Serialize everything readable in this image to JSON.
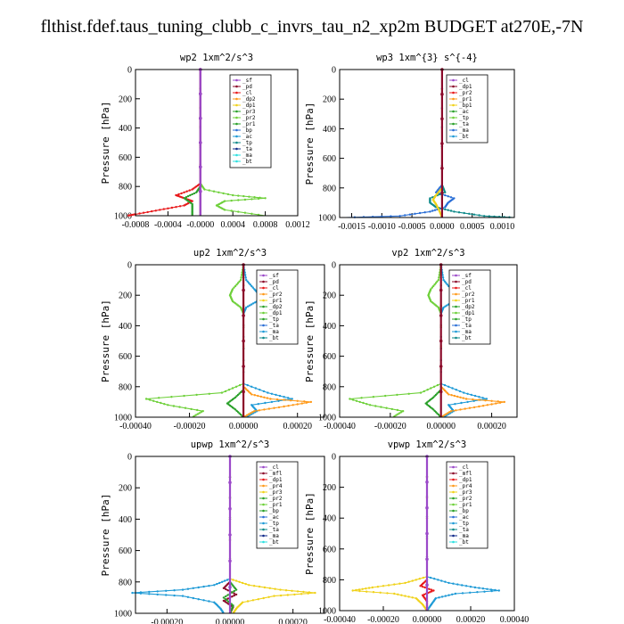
{
  "page_title": "flthist.fdef.taus_tuning_clubb_c_invrs_tau_n2_xp2m  BUDGET at270E,-7N",
  "colors": {
    "purple": "#9b49c9",
    "darkred": "#8b0a2a",
    "red": "#e8191b",
    "orange": "#ff9a1a",
    "yellow": "#f0d21a",
    "green": "#2aa02a",
    "lightgreen": "#6ed03a",
    "blue": "#2b6fd6",
    "skyblue": "#1e9ad6",
    "teal": "#0f8a8a",
    "navy": "#102a8a",
    "cyan": "#2ee0e0"
  },
  "chart_data": [
    {
      "type": "line",
      "title": "wp2   1xm^2/s^3",
      "ylabel": "Pressure  [hPa]",
      "ylim": [
        1000,
        0
      ],
      "yticks": [
        "0",
        "200",
        "400",
        "600",
        "800",
        "1000"
      ],
      "xlim": [
        -0.0008,
        0.0012
      ],
      "xticks": [
        "-0.0008",
        "-0.0004",
        "-0.0000",
        "0.0004",
        "0.0008",
        "0.0012"
      ],
      "xtick_values": [
        -0.0008,
        -0.0006,
        -0.0004,
        -0.0002,
        0.0,
        0.0004,
        0.0008,
        0.0012
      ],
      "legend": [
        "_sf",
        "_pd",
        "_cl",
        "_dp2",
        "_dp1",
        "_pr3",
        "_pr2",
        "_pr1",
        "_bp",
        "_ac",
        "_tp",
        "_ta",
        "_ma",
        "_bt"
      ],
      "series": [
        {
          "name": "_pr1",
          "color": "lightgreen",
          "y": [
            0,
            780,
            820,
            860,
            880,
            900,
            930,
            960,
            1000
          ],
          "x": [
            0,
            0,
            5e-05,
            0.0004,
            0.0008,
            0.0003,
            0.0002,
            0.0003,
            0.0008
          ]
        },
        {
          "name": "_dp1",
          "color": "red",
          "y": [
            0,
            780,
            820,
            860,
            880,
            900,
            930,
            960,
            990,
            1000
          ],
          "x": [
            0,
            0,
            -0.0001,
            -0.0003,
            -0.0002,
            -0.0001,
            -0.0002,
            -0.0005,
            -0.0008,
            -0.0009
          ]
        },
        {
          "name": "_bp",
          "color": "green",
          "y": [
            0,
            800,
            840,
            880,
            920,
            960,
            1000
          ],
          "x": [
            0,
            0,
            -5e-05,
            -0.0002,
            -0.0001,
            -0.0001,
            -0.0001
          ]
        },
        {
          "name": "_cl",
          "color": "darkred",
          "y": [
            0,
            1000
          ],
          "x": [
            0,
            0
          ]
        },
        {
          "name": "_pd",
          "color": "purple",
          "y": [
            0,
            1000
          ],
          "x": [
            0,
            0
          ]
        }
      ]
    },
    {
      "type": "line",
      "title": "wp3   1xm^{3} s^{-4}",
      "ylabel": "Pressure  [hPa]",
      "ylim": [
        1000,
        0
      ],
      "yticks": [
        "0",
        "200",
        "400",
        "600",
        "800",
        "1000"
      ],
      "xlim": [
        -0.0017,
        0.0012
      ],
      "xticks": [
        "-0.0015",
        "-0.0010",
        "-0.0005",
        "0.0000",
        "0.0005",
        "0.0010"
      ],
      "xtick_values": [
        -0.0015,
        -0.001,
        -0.0005,
        0.0,
        0.0005,
        0.001
      ],
      "legend": [
        "_cl",
        "_dp1",
        "_pr2",
        "_pr1",
        "_bp1",
        "_ac",
        "_tp",
        "_ta",
        "_ma",
        "_bt"
      ],
      "series": [
        {
          "name": "_tp",
          "color": "blue",
          "y": [
            0,
            780,
            830,
            870,
            900,
            930,
            960,
            990,
            1000
          ],
          "x": [
            0,
            0,
            -0.0001,
            0.0002,
            0.0001,
            5e-05,
            -0.0002,
            -0.0007,
            -0.0016
          ]
        },
        {
          "name": "_ta",
          "color": "teal",
          "y": [
            0,
            780,
            830,
            870,
            900,
            930,
            960,
            990,
            1000
          ],
          "x": [
            0,
            0,
            5e-05,
            -0.0002,
            -0.0002,
            -0.0001,
            0.0002,
            0.0007,
            0.0012
          ]
        },
        {
          "name": "_pr1",
          "color": "yellow",
          "y": [
            0,
            800,
            850,
            880,
            910,
            950,
            1000
          ],
          "x": [
            0,
            0,
            -0.0001,
            -0.00015,
            -0.0001,
            -5e-05,
            0
          ]
        },
        {
          "name": "_cl",
          "color": "darkred",
          "y": [
            0,
            1000
          ],
          "x": [
            0,
            0
          ]
        }
      ]
    },
    {
      "type": "line",
      "title": "up2   1xm^2/s^3",
      "ylabel": "Pressure  [hPa]",
      "ylim": [
        1000,
        0
      ],
      "yticks": [
        "0",
        "200",
        "400",
        "600",
        "800",
        "1000"
      ],
      "xlim": [
        -0.0004,
        0.0003
      ],
      "xticks": [
        "-0.00040",
        "-0.00020",
        "0.00000",
        "0.00020"
      ],
      "xtick_values": [
        -0.0004,
        -0.0003,
        -0.0002,
        -0.0001,
        0.0,
        0.0001,
        0.0002
      ],
      "legend": [
        "_sf",
        "_pd",
        "_cl",
        "_pr2",
        "_pr1",
        "_dp2",
        "_dp1",
        "_tp",
        "_ta",
        "_ma",
        "_bt"
      ],
      "series": [
        {
          "name": "_pr1",
          "color": "lightgreen",
          "y": [
            0,
            100,
            160,
            200,
            240,
            280,
            320,
            780,
            840,
            880,
            920,
            960,
            1000
          ],
          "x": [
            0,
            -1e-05,
            -4e-05,
            -5e-05,
            -4e-05,
            -1e-05,
            0,
            0,
            -8e-05,
            -0.00036,
            -0.00028,
            -0.00015,
            -0.00019
          ]
        },
        {
          "name": "_tp",
          "color": "skyblue",
          "y": [
            0,
            100,
            160,
            200,
            240,
            280,
            320,
            780,
            840,
            880,
            920,
            960,
            1000
          ],
          "x": [
            0,
            1e-05,
            4e-05,
            6e-05,
            5e-05,
            1e-05,
            0,
            0,
            9e-05,
            0.00018,
            3e-05,
            5e-05,
            1e-05
          ]
        },
        {
          "name": "_pr2",
          "color": "orange",
          "y": [
            0,
            800,
            850,
            880,
            900,
            930,
            960,
            1000
          ],
          "x": [
            0,
            0,
            3e-05,
            0.0001,
            0.00025,
            0.00015,
            4e-05,
            0
          ]
        },
        {
          "name": "_dp1",
          "color": "green",
          "y": [
            0,
            820,
            870,
            910,
            950,
            1000
          ],
          "x": [
            0,
            0,
            -3e-05,
            -6e-05,
            -3e-05,
            0
          ]
        },
        {
          "name": "_cl",
          "color": "darkred",
          "y": [
            0,
            1000
          ],
          "x": [
            0,
            0
          ]
        }
      ]
    },
    {
      "type": "line",
      "title": "vp2   1xm^2/s^3",
      "ylabel": "Pressure  [hPa]",
      "ylim": [
        1000,
        0
      ],
      "yticks": [
        "0",
        "200",
        "400",
        "600",
        "800",
        "1000"
      ],
      "xlim": [
        -0.0004,
        0.0003
      ],
      "xticks": [
        "-0.00040",
        "-0.00020",
        "0.00000",
        "0.00020"
      ],
      "xtick_values": [
        -0.0004,
        -0.0003,
        -0.0002,
        -0.0001,
        0.0,
        0.0001,
        0.0002
      ],
      "legend": [
        "_sf",
        "_pd",
        "_cl",
        "_pr2",
        "_pr1",
        "_dp2",
        "_dp1",
        "_tp",
        "_ta",
        "_ma",
        "_bt"
      ],
      "series": [
        {
          "name": "_pr1",
          "color": "lightgreen",
          "y": [
            0,
            100,
            160,
            200,
            240,
            280,
            320,
            780,
            840,
            880,
            920,
            960,
            1000
          ],
          "x": [
            0,
            -1e-05,
            -4e-05,
            -5e-05,
            -4e-05,
            -1e-05,
            0,
            0,
            -8e-05,
            -0.00036,
            -0.00028,
            -0.00015,
            -0.00019
          ]
        },
        {
          "name": "_tp",
          "color": "skyblue",
          "y": [
            0,
            100,
            160,
            200,
            240,
            280,
            320,
            780,
            840,
            880,
            920,
            960,
            1000
          ],
          "x": [
            0,
            1e-05,
            4e-05,
            6e-05,
            5e-05,
            1e-05,
            0,
            0,
            9e-05,
            0.00018,
            3e-05,
            5e-05,
            1e-05
          ]
        },
        {
          "name": "_pr2",
          "color": "orange",
          "y": [
            0,
            800,
            850,
            880,
            900,
            930,
            960,
            1000
          ],
          "x": [
            0,
            0,
            3e-05,
            0.0001,
            0.00025,
            0.00015,
            4e-05,
            0
          ]
        },
        {
          "name": "_dp1",
          "color": "green",
          "y": [
            0,
            820,
            870,
            910,
            950,
            1000
          ],
          "x": [
            0,
            0,
            -3e-05,
            -6e-05,
            -3e-05,
            0
          ]
        },
        {
          "name": "_cl",
          "color": "darkred",
          "y": [
            0,
            1000
          ],
          "x": [
            0,
            0
          ]
        }
      ]
    },
    {
      "type": "line",
      "title": "upwp   1xm^2/s^3",
      "ylabel": "Pressure  [hPa]",
      "ylim": [
        1000,
        0
      ],
      "yticks": [
        "0",
        "200",
        "400",
        "600",
        "800",
        "1000"
      ],
      "xlim": [
        -0.0003,
        0.0003
      ],
      "xticks": [
        "-0.00020",
        "0.00000",
        "0.00020"
      ],
      "xtick_values": [
        -0.0002,
        0.0,
        0.0002
      ],
      "legend": [
        "_cl",
        "_mfl",
        "_dp1",
        "_pr4",
        "_pr3",
        "_pr2",
        "_pr1",
        "_bp",
        "_ac",
        "_tp",
        "_ta",
        "_ma",
        "_bt"
      ],
      "series": [
        {
          "name": "_tp",
          "color": "skyblue",
          "y": [
            0,
            780,
            820,
            850,
            870,
            890,
            930,
            970,
            1000
          ],
          "x": [
            0,
            0,
            -5e-05,
            -0.00015,
            -0.00031,
            -0.00015,
            -5e-05,
            -3e-05,
            -2e-05
          ]
        },
        {
          "name": "_pr2",
          "color": "yellow",
          "y": [
            0,
            780,
            820,
            850,
            870,
            890,
            930,
            970,
            1000
          ],
          "x": [
            0,
            0,
            6e-05,
            0.00016,
            0.00027,
            0.00014,
            4e-05,
            2e-05,
            1e-05
          ]
        },
        {
          "name": "_dp1",
          "color": "darkred",
          "y": [
            0,
            800,
            840,
            880,
            920,
            960,
            1000
          ],
          "x": [
            0,
            0,
            -2e-05,
            2e-05,
            -2e-05,
            1e-05,
            0
          ]
        },
        {
          "name": "_ta",
          "color": "green",
          "y": [
            0,
            800,
            850,
            900,
            950,
            1000
          ],
          "x": [
            0,
            0,
            2e-05,
            -2e-05,
            1e-05,
            0
          ]
        },
        {
          "name": "_cl",
          "color": "purple",
          "y": [
            0,
            1000
          ],
          "x": [
            0,
            0
          ]
        }
      ]
    },
    {
      "type": "line",
      "title": "vpwp   1xm^2/s^3",
      "ylabel": "Pressure  [hPa]",
      "ylim": [
        1000,
        0
      ],
      "yticks": [
        "0",
        "200",
        "400",
        "600",
        "800",
        "1000"
      ],
      "xlim": [
        -0.0004,
        0.0004
      ],
      "xticks": [
        "-0.00040",
        "-0.00020",
        "0.00000",
        "0.00020",
        "0.00040"
      ],
      "xtick_values": [
        -0.0004,
        -0.0002,
        0.0,
        0.0002,
        0.0004
      ],
      "legend": [
        "_cl",
        "_mfl",
        "_dp1",
        "_pr4",
        "_pr3",
        "_pr2",
        "_pr1",
        "_bp",
        "_ac",
        "_tp",
        "_ta",
        "_ma",
        "_bt"
      ],
      "series": [
        {
          "name": "_pr2",
          "color": "yellow",
          "y": [
            0,
            780,
            820,
            850,
            870,
            890,
            920,
            960,
            1000
          ],
          "x": [
            0,
            0,
            -0.0001,
            -0.00025,
            -0.00034,
            -0.00015,
            -5e-05,
            -2e-05,
            0
          ]
        },
        {
          "name": "_tp",
          "color": "skyblue",
          "y": [
            0,
            780,
            820,
            850,
            870,
            890,
            920,
            960,
            1000
          ],
          "x": [
            0,
            0,
            0.0001,
            0.00022,
            0.00033,
            0.00013,
            4e-05,
            2e-05,
            0
          ]
        },
        {
          "name": "_dp1",
          "color": "red",
          "y": [
            0,
            800,
            840,
            870,
            900,
            940,
            1000
          ],
          "x": [
            0,
            0,
            -3e-05,
            3e-05,
            -2e-05,
            0,
            0
          ]
        },
        {
          "name": "_cl",
          "color": "purple",
          "y": [
            0,
            1000
          ],
          "x": [
            0,
            0
          ]
        }
      ]
    }
  ]
}
